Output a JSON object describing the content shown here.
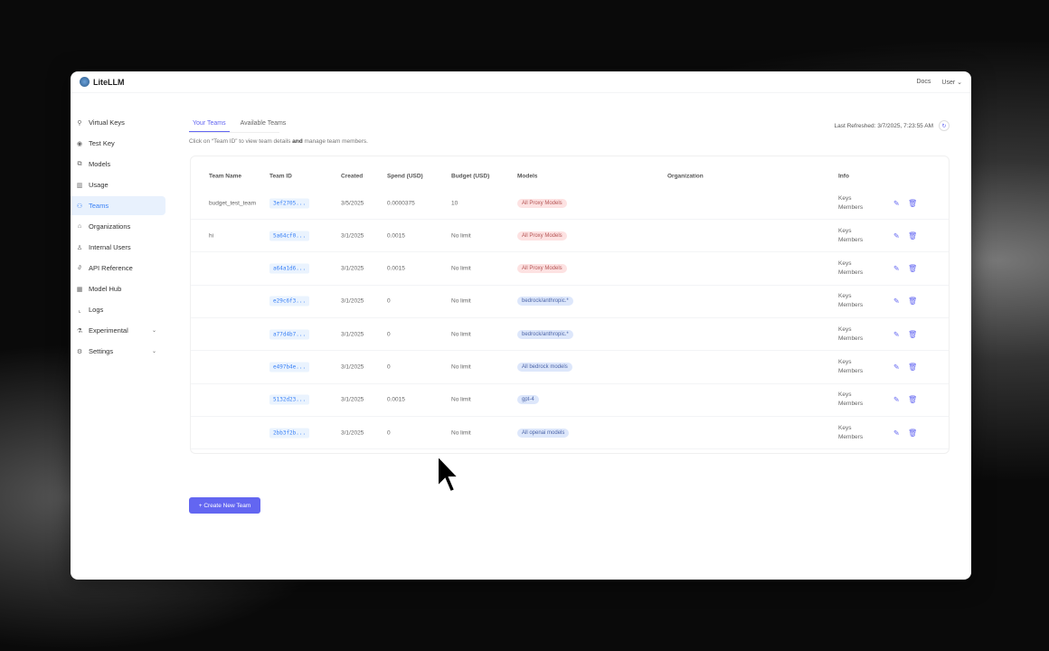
{
  "app": {
    "name": "LiteLLM",
    "docs": "Docs",
    "user": "User"
  },
  "sidebar": {
    "items": [
      {
        "label": "Virtual Keys",
        "icon": "key-icon",
        "glyph": "⚲"
      },
      {
        "label": "Test Key",
        "icon": "play-circle-icon",
        "glyph": "◉"
      },
      {
        "label": "Models",
        "icon": "layers-icon",
        "glyph": "⧉"
      },
      {
        "label": "Usage",
        "icon": "bar-chart-icon",
        "glyph": "▥"
      },
      {
        "label": "Teams",
        "icon": "team-icon",
        "glyph": "⚇",
        "active": true
      },
      {
        "label": "Organizations",
        "icon": "bank-icon",
        "glyph": "⌂"
      },
      {
        "label": "Internal Users",
        "icon": "user-icon",
        "glyph": "♙"
      },
      {
        "label": "API Reference",
        "icon": "link-icon",
        "glyph": "∂"
      },
      {
        "label": "Model Hub",
        "icon": "grid-icon",
        "glyph": "▦"
      },
      {
        "label": "Logs",
        "icon": "line-chart-icon",
        "glyph": "⌞"
      },
      {
        "label": "Experimental",
        "icon": "flask-icon",
        "glyph": "⚗",
        "chevron": true
      },
      {
        "label": "Settings",
        "icon": "gear-icon",
        "glyph": "⚙",
        "chevron": true
      }
    ]
  },
  "tabs": [
    "Your Teams",
    "Available Teams"
  ],
  "hint_pre": "Click on “Team ID” to view team details ",
  "hint_bold": "and",
  "hint_post": " manage team members.",
  "last_refreshed": "Last Refreshed: 3/7/2025, 7:23:55 AM",
  "table": {
    "headers": [
      "Team Name",
      "Team ID",
      "Created",
      "Spend (USD)",
      "Budget (USD)",
      "Models",
      "Organization",
      "Info"
    ],
    "rows": [
      {
        "name": "budget_test_team",
        "id": "3ef2705...",
        "created": "3/5/2025",
        "spend": "0.0000375",
        "budget": "10",
        "model": "All Proxy Models",
        "model_kind": "red"
      },
      {
        "name": "hi",
        "id": "5a64cf0...",
        "created": "3/1/2025",
        "spend": "0.0015",
        "budget": "No limit",
        "model": "All Proxy Models",
        "model_kind": "red"
      },
      {
        "name": "",
        "id": "a64a1d6...",
        "created": "3/1/2025",
        "spend": "0.0015",
        "budget": "No limit",
        "model": "All Proxy Models",
        "model_kind": "red"
      },
      {
        "name": "",
        "id": "e29c6f3...",
        "created": "3/1/2025",
        "spend": "0",
        "budget": "No limit",
        "model": "bedrock/anthropic.*",
        "model_kind": "blue"
      },
      {
        "name": "",
        "id": "a77d4b7...",
        "created": "3/1/2025",
        "spend": "0",
        "budget": "No limit",
        "model": "bedrock/anthropic.*",
        "model_kind": "blue"
      },
      {
        "name": "",
        "id": "e497b4e...",
        "created": "3/1/2025",
        "spend": "0",
        "budget": "No limit",
        "model": "All bedrock models",
        "model_kind": "blue"
      },
      {
        "name": "",
        "id": "5132d23...",
        "created": "3/1/2025",
        "spend": "0.0015",
        "budget": "No limit",
        "model": "gpt-4",
        "model_kind": "blue"
      },
      {
        "name": "",
        "id": "2bb3f2b...",
        "created": "3/1/2025",
        "spend": "0",
        "budget": "No limit",
        "model": "All openai models",
        "model_kind": "blue"
      }
    ],
    "info_keys": "Keys",
    "info_members": "Members"
  },
  "create_button": "+ Create New Team",
  "colors": {
    "accent": "#6366f1",
    "badge_red_bg": "#fde2e2",
    "badge_red_fg": "#b45353",
    "badge_blue_bg": "#dde7fb",
    "badge_blue_fg": "#4b64a8"
  }
}
